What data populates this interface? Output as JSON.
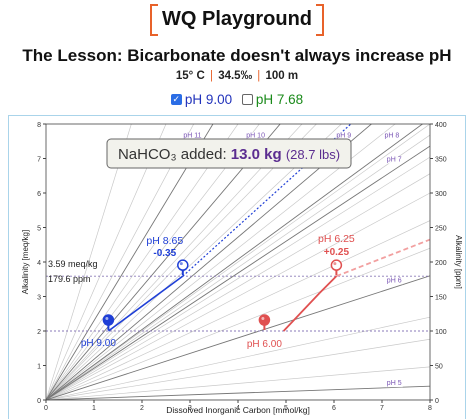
{
  "brand": {
    "title": "WQ Playground"
  },
  "lesson": {
    "title": "The Lesson: Bicarbonate doesn't always increase pH"
  },
  "conditions": {
    "temperature": "15° C",
    "salinity": "34.5‰",
    "depth": "100 m",
    "separator": "|"
  },
  "toggles": [
    {
      "label": "pH 9.00",
      "checked": true,
      "color": "#2233bb"
    },
    {
      "label": "pH 7.68",
      "checked": false,
      "color": "#1a8a1a"
    }
  ],
  "callout": {
    "prefix": "NaHCO₃ added:",
    "amount": "13.0 kg",
    "alt": "(28.7 lbs)"
  },
  "chart_data": {
    "type": "line",
    "xlabel": "Dissolved Inorganic Carbon [mmol/kg]",
    "ylabel": "Alkalinity [meq/kg]",
    "ylabel_right": "Alkalinity [ppm]",
    "xlim": [
      0,
      8
    ],
    "ylim": [
      0,
      8
    ],
    "ylim_right": [
      0,
      400
    ],
    "x_ticks": [
      0,
      1,
      2,
      3,
      4,
      5,
      6,
      7,
      8
    ],
    "y_ticks": [
      0,
      1,
      2,
      3,
      4,
      5,
      6,
      7,
      8
    ],
    "y_ticks_right": [
      0,
      50,
      100,
      150,
      200,
      250,
      300,
      350,
      400
    ],
    "isopleths": [
      {
        "label": "pH 5",
        "slope": 0.05
      },
      {
        "label": "pH 6",
        "slope": 0.45
      },
      {
        "label": "pH 7",
        "slope": 0.92
      },
      {
        "label": "pH 8",
        "slope": 1.02
      },
      {
        "label": "pH 9",
        "slope": 1.18
      },
      {
        "label": "pH 10",
        "slope": 1.64
      },
      {
        "label": "pH 11",
        "slope": 2.3
      }
    ],
    "background_slopes": [
      0.0,
      0.12,
      0.22,
      0.3,
      0.55,
      0.65,
      0.75,
      0.82,
      0.88,
      0.96,
      1.0,
      1.1,
      1.3,
      1.42,
      1.5,
      1.8,
      2.0,
      2.6,
      3.2,
      4.5
    ],
    "reference_lines": [
      {
        "y": 3.59,
        "label_meq": "3.59 meq/kg",
        "label_ppm": "179.6 ppm"
      },
      {
        "y": 2.0
      }
    ],
    "series": [
      {
        "name": "pH 9.00",
        "color": "#1f3fd6",
        "start": {
          "x": 1.3,
          "y": 2.0
        },
        "end": {
          "x": 2.85,
          "y": 3.59
        },
        "start_label": "pH 9.00",
        "end_label": "pH 8.65",
        "delta_label": "-0.35"
      },
      {
        "name": "pH 6.00",
        "color": "#e05050",
        "start": {
          "x": 4.55,
          "y": 2.0
        },
        "end": {
          "x": 6.05,
          "y": 3.59
        },
        "start_label": "pH 6.00",
        "end_label": "pH 6.25",
        "delta_label": "+0.25"
      }
    ]
  }
}
